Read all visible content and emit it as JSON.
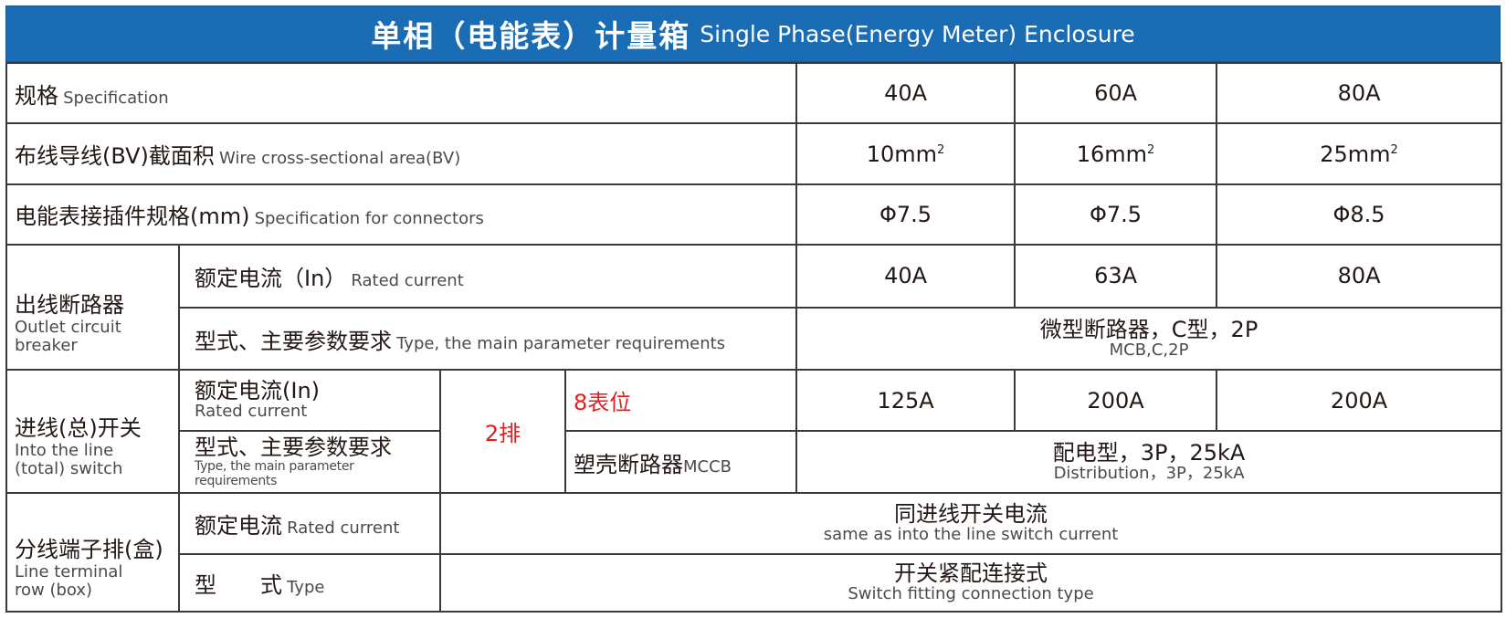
{
  "header": {
    "title_cn": "单相（电能表）计量箱",
    "title_en": "Single Phase(Energy Meter) Enclosure"
  },
  "rows": {
    "spec": {
      "cn": "规格",
      "en": "Specification",
      "values": [
        "40A",
        "60A",
        "80A"
      ]
    },
    "wire": {
      "cn": "布线导线(BV)截面积",
      "en": "Wire cross-sectional area(BV)",
      "values": [
        "10mm",
        "16mm",
        "25mm"
      ],
      "unit_sup": "2"
    },
    "connector": {
      "cn": "电能表接插件规格(mm)",
      "en": "Specification for connectors",
      "values": [
        "Φ7.5",
        "Φ7.5",
        "Φ8.5"
      ]
    },
    "outlet": {
      "cn": "出线断路器",
      "en": "Outlet circuit breaker",
      "rated_cn": "额定电流（In）",
      "rated_en": "Rated current",
      "rated_values": [
        "40A",
        "63A",
        "80A"
      ],
      "type_cn": "型式、主要参数要求",
      "type_en": "Type, the main parameter requirements",
      "type_value_cn": "微型断路器，C型，2P",
      "type_value_en": "MCB,C,2P"
    },
    "inlet": {
      "cn": "进线(总)开关",
      "en": "Into the line (total) switch",
      "rated_cn": "额定电流(In)",
      "rated_en": "Rated current",
      "rows_label": "2排",
      "positions_label": "8表位",
      "rated_values": [
        "125A",
        "200A",
        "200A"
      ],
      "type_cn": "型式、主要参数要求",
      "type_en": "Type, the main parameter requirements",
      "mccb_cn": "塑壳断路器",
      "mccb_en": "MCCB",
      "type_value_cn": "配电型，3P，25kA",
      "type_value_en": "Distribution，3P，25kA"
    },
    "terminal": {
      "cn": "分线端子排(盒)",
      "en": "Line terminal row (box)",
      "rated_cn": "额定电流",
      "rated_en": "Rated current",
      "rated_value_cn": "同进线开关电流",
      "rated_value_en": "same as into the line switch current",
      "type_cn": "型　　式",
      "type_en": "Type",
      "type_value_cn": "开关紧配连接式",
      "type_value_en": "Switch fitting connection type"
    }
  },
  "colors": {
    "header_bg": "#1a6cb5",
    "header_text": "#ffffff",
    "accent_red": "#e02020",
    "border": "#3a3a3a"
  }
}
